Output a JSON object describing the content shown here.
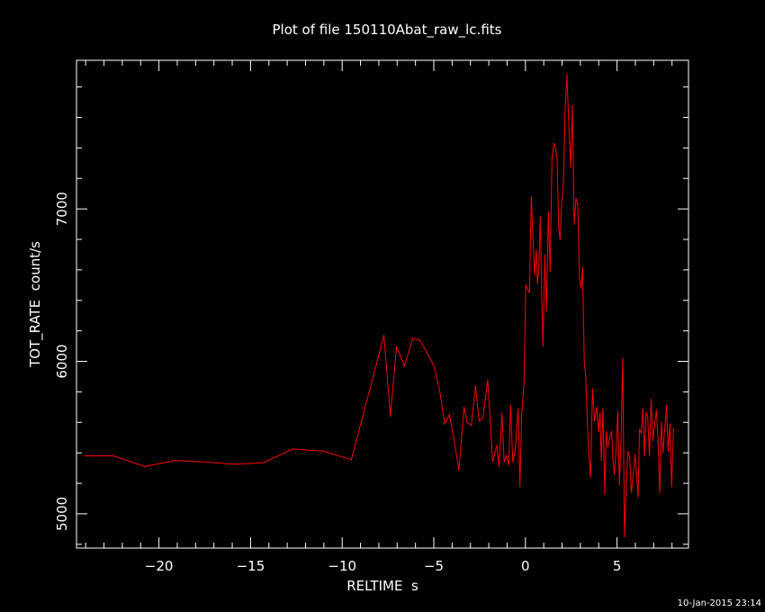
{
  "chart_data": {
    "type": "line",
    "title": "Plot of file 150110Abat_raw_lc.fits",
    "xlabel": "RELTIME  s",
    "ylabel": "TOT_RATE  count/s",
    "timestamp": "10-Jan-2015 23:14",
    "xlim": [
      -24.5,
      8.9
    ],
    "ylim": [
      4775,
      7975
    ],
    "xticks": [
      -20,
      -15,
      -10,
      -5,
      0,
      5
    ],
    "xtick_labels": [
      "−20",
      "−15",
      "−10",
      "−5",
      "0",
      "5"
    ],
    "yticks": [
      5000,
      6000,
      7000
    ],
    "ytick_labels": [
      "5000",
      "6000",
      "7000"
    ],
    "grid": false,
    "series": [
      {
        "color": "#ff0000",
        "x": [
          -24.08,
          -22.48,
          -20.78,
          -19.1,
          -17.5,
          -15.9,
          -14.3,
          -12.7,
          -11.0,
          -9.5,
          -7.72,
          -7.37,
          -7.04,
          -6.6,
          -6.15,
          -5.77,
          -5.38,
          -4.96,
          -4.68,
          -4.4,
          -4.15,
          -3.93,
          -3.63,
          -3.35,
          -3.18,
          -2.95,
          -2.73,
          -2.52,
          -2.32,
          -2.06,
          -1.79,
          -1.56,
          -1.44,
          -1.28,
          -1.16,
          -1.04,
          -0.91,
          -0.81,
          -0.69,
          -0.56,
          -0.4,
          -0.3,
          -0.2,
          -0.08,
          0.02,
          0.1,
          0.22,
          0.32,
          0.42,
          0.5,
          0.59,
          0.66,
          0.73,
          0.81,
          0.89,
          0.96,
          1.06,
          1.15,
          1.25,
          1.35,
          1.45,
          1.55,
          1.64,
          1.73,
          1.81,
          1.89,
          1.97,
          2.07,
          2.17,
          2.27,
          2.37,
          2.47,
          2.56,
          2.66,
          2.76,
          2.86,
          2.95,
          3.04,
          3.12,
          3.21,
          3.29,
          3.38,
          3.46,
          3.56,
          3.66,
          3.77,
          3.89,
          4.0,
          4.07,
          4.14,
          4.23,
          4.33,
          4.41,
          4.5,
          4.6,
          4.7,
          4.77,
          4.85,
          4.94,
          5.04,
          5.13,
          5.22,
          5.31,
          5.41,
          5.51,
          5.6,
          5.69,
          5.78,
          5.88,
          5.98,
          6.06,
          6.15,
          6.23,
          6.32,
          6.41,
          6.5,
          6.58,
          6.67,
          6.77,
          6.86,
          6.96,
          7.05,
          7.15,
          7.24,
          7.33,
          7.42,
          7.51,
          7.6,
          7.7,
          7.79,
          7.89,
          7.98,
          8.08
        ],
        "values": [
          5380,
          5380,
          5310,
          5350,
          5340,
          5325,
          5335,
          5425,
          5410,
          5355,
          6170,
          5640,
          6095,
          5970,
          6150,
          6140,
          6060,
          5960,
          5810,
          5590,
          5650,
          5510,
          5285,
          5700,
          5600,
          5580,
          5840,
          5610,
          5630,
          5880,
          5340,
          5450,
          5310,
          5660,
          5340,
          5380,
          5320,
          5710,
          5340,
          5410,
          5690,
          5180,
          5660,
          5850,
          6500,
          6480,
          6450,
          7080,
          6800,
          6570,
          6730,
          6510,
          6620,
          6950,
          6430,
          6100,
          6700,
          6330,
          6980,
          6590,
          7330,
          7430,
          7400,
          7320,
          6890,
          6800,
          7020,
          7160,
          7660,
          7880,
          7540,
          7270,
          7680,
          6900,
          7070,
          7030,
          6540,
          6480,
          6620,
          6000,
          5900,
          5610,
          5390,
          5240,
          5820,
          5610,
          5700,
          5540,
          5660,
          5350,
          5690,
          5130,
          5540,
          5440,
          5500,
          5540,
          5370,
          5260,
          5400,
          5670,
          5190,
          5490,
          6020,
          4850,
          5220,
          5410,
          5370,
          5140,
          5250,
          5390,
          5260,
          5110,
          5550,
          5530,
          5690,
          5380,
          5660,
          5640,
          5380,
          5750,
          5480,
          5580,
          5680,
          5470,
          5140,
          5600,
          5400,
          5550,
          5710,
          5410,
          5590,
          5180,
          5560
        ]
      }
    ]
  }
}
